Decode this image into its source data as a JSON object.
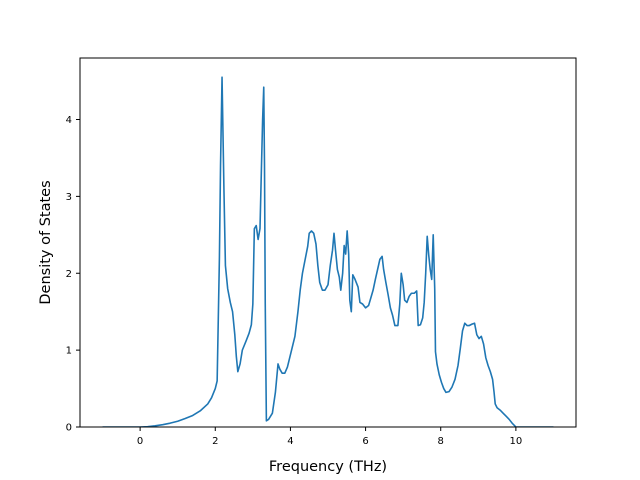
{
  "chart_data": {
    "type": "line",
    "xlabel": "Frequency (THz)",
    "ylabel": "Density of States",
    "xlim": [
      -1.6,
      11.6
    ],
    "ylim": [
      0,
      4.8
    ],
    "xticks": [
      0,
      2,
      4,
      6,
      8,
      10
    ],
    "yticks": [
      0,
      1,
      2,
      3,
      4
    ],
    "grid": false,
    "colors": {
      "line": "#1f77b4",
      "axes": "#000000",
      "background": "#ffffff"
    },
    "series": [
      {
        "points": [
          [
            -1.0,
            0
          ],
          [
            -0.5,
            0
          ],
          [
            0,
            0
          ],
          [
            0.2,
            0.005
          ],
          [
            0.4,
            0.015
          ],
          [
            0.6,
            0.03
          ],
          [
            0.8,
            0.05
          ],
          [
            1.0,
            0.075
          ],
          [
            1.2,
            0.11
          ],
          [
            1.4,
            0.15
          ],
          [
            1.6,
            0.21
          ],
          [
            1.8,
            0.3
          ],
          [
            1.9,
            0.38
          ],
          [
            2.0,
            0.5
          ],
          [
            2.05,
            0.6
          ],
          [
            2.08,
            1.4
          ],
          [
            2.11,
            2.2
          ],
          [
            2.14,
            3.4
          ],
          [
            2.18,
            4.55
          ],
          [
            2.23,
            3.1
          ],
          [
            2.27,
            2.1
          ],
          [
            2.33,
            1.8
          ],
          [
            2.4,
            1.62
          ],
          [
            2.46,
            1.5
          ],
          [
            2.52,
            1.2
          ],
          [
            2.56,
            0.92
          ],
          [
            2.6,
            0.72
          ],
          [
            2.66,
            0.82
          ],
          [
            2.72,
            1.0
          ],
          [
            2.82,
            1.12
          ],
          [
            2.9,
            1.22
          ],
          [
            2.96,
            1.33
          ],
          [
            3.0,
            1.6
          ],
          [
            3.04,
            2.58
          ],
          [
            3.09,
            2.62
          ],
          [
            3.14,
            2.44
          ],
          [
            3.19,
            2.58
          ],
          [
            3.23,
            3.4
          ],
          [
            3.26,
            4.0
          ],
          [
            3.29,
            4.42
          ],
          [
            3.31,
            3.4
          ],
          [
            3.33,
            1.6
          ],
          [
            3.36,
            0.08
          ],
          [
            3.42,
            0.1
          ],
          [
            3.52,
            0.18
          ],
          [
            3.6,
            0.45
          ],
          [
            3.67,
            0.82
          ],
          [
            3.72,
            0.75
          ],
          [
            3.78,
            0.7
          ],
          [
            3.85,
            0.7
          ],
          [
            3.92,
            0.78
          ],
          [
            4.02,
            0.98
          ],
          [
            4.12,
            1.18
          ],
          [
            4.2,
            1.5
          ],
          [
            4.26,
            1.78
          ],
          [
            4.32,
            2.0
          ],
          [
            4.4,
            2.2
          ],
          [
            4.46,
            2.35
          ],
          [
            4.5,
            2.52
          ],
          [
            4.56,
            2.55
          ],
          [
            4.62,
            2.52
          ],
          [
            4.68,
            2.38
          ],
          [
            4.73,
            2.1
          ],
          [
            4.78,
            1.88
          ],
          [
            4.85,
            1.78
          ],
          [
            4.92,
            1.78
          ],
          [
            5.0,
            1.85
          ],
          [
            5.06,
            2.1
          ],
          [
            5.12,
            2.3
          ],
          [
            5.16,
            2.52
          ],
          [
            5.2,
            2.3
          ],
          [
            5.25,
            2.05
          ],
          [
            5.3,
            1.95
          ],
          [
            5.34,
            1.78
          ],
          [
            5.39,
            2.0
          ],
          [
            5.43,
            2.36
          ],
          [
            5.47,
            2.25
          ],
          [
            5.51,
            2.55
          ],
          [
            5.55,
            2.25
          ],
          [
            5.58,
            1.65
          ],
          [
            5.62,
            1.5
          ],
          [
            5.66,
            1.98
          ],
          [
            5.72,
            1.92
          ],
          [
            5.8,
            1.82
          ],
          [
            5.85,
            1.62
          ],
          [
            5.92,
            1.6
          ],
          [
            6.0,
            1.55
          ],
          [
            6.08,
            1.58
          ],
          [
            6.14,
            1.68
          ],
          [
            6.2,
            1.78
          ],
          [
            6.26,
            1.92
          ],
          [
            6.32,
            2.05
          ],
          [
            6.38,
            2.18
          ],
          [
            6.44,
            2.22
          ],
          [
            6.48,
            2.05
          ],
          [
            6.54,
            1.88
          ],
          [
            6.6,
            1.72
          ],
          [
            6.66,
            1.55
          ],
          [
            6.72,
            1.45
          ],
          [
            6.78,
            1.32
          ],
          [
            6.86,
            1.32
          ],
          [
            6.91,
            1.6
          ],
          [
            6.95,
            2.0
          ],
          [
            7.0,
            1.85
          ],
          [
            7.04,
            1.65
          ],
          [
            7.1,
            1.62
          ],
          [
            7.16,
            1.7
          ],
          [
            7.22,
            1.74
          ],
          [
            7.3,
            1.74
          ],
          [
            7.36,
            1.77
          ],
          [
            7.4,
            1.32
          ],
          [
            7.46,
            1.33
          ],
          [
            7.52,
            1.42
          ],
          [
            7.56,
            1.62
          ],
          [
            7.6,
            2.0
          ],
          [
            7.64,
            2.48
          ],
          [
            7.68,
            2.24
          ],
          [
            7.72,
            2.05
          ],
          [
            7.76,
            1.92
          ],
          [
            7.8,
            2.5
          ],
          [
            7.84,
            1.8
          ],
          [
            7.86,
            0.98
          ],
          [
            7.9,
            0.82
          ],
          [
            7.96,
            0.68
          ],
          [
            8.02,
            0.58
          ],
          [
            8.08,
            0.5
          ],
          [
            8.14,
            0.45
          ],
          [
            8.22,
            0.46
          ],
          [
            8.3,
            0.52
          ],
          [
            8.38,
            0.62
          ],
          [
            8.46,
            0.8
          ],
          [
            8.52,
            1.02
          ],
          [
            8.58,
            1.25
          ],
          [
            8.64,
            1.35
          ],
          [
            8.7,
            1.32
          ],
          [
            8.76,
            1.32
          ],
          [
            8.84,
            1.34
          ],
          [
            8.9,
            1.35
          ],
          [
            8.96,
            1.2
          ],
          [
            9.02,
            1.15
          ],
          [
            9.08,
            1.18
          ],
          [
            9.14,
            1.08
          ],
          [
            9.2,
            0.9
          ],
          [
            9.26,
            0.8
          ],
          [
            9.32,
            0.72
          ],
          [
            9.38,
            0.62
          ],
          [
            9.42,
            0.45
          ],
          [
            9.45,
            0.3
          ],
          [
            9.5,
            0.25
          ],
          [
            9.58,
            0.22
          ],
          [
            9.66,
            0.18
          ],
          [
            9.74,
            0.14
          ],
          [
            9.82,
            0.1
          ],
          [
            9.9,
            0.05
          ],
          [
            9.96,
            0.02
          ],
          [
            10.0,
            0.0
          ],
          [
            10.2,
            0
          ],
          [
            10.6,
            0
          ],
          [
            11.0,
            0
          ]
        ]
      }
    ]
  }
}
